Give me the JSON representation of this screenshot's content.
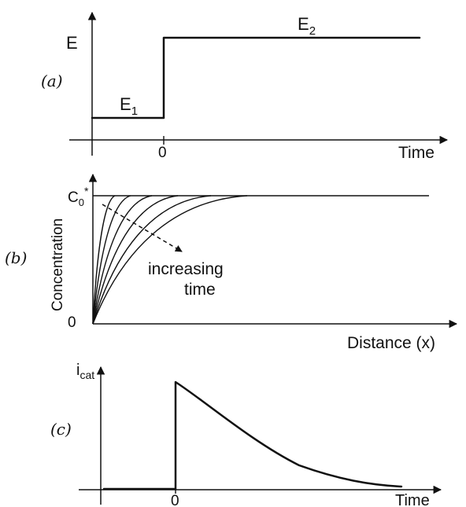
{
  "panel_a": {
    "label": "(a)",
    "y_label": "E",
    "x_label": "Time",
    "zero_tick": "0",
    "e1_label": "E",
    "e1_sub": "1",
    "e2_label": "E",
    "e2_sub": "2"
  },
  "panel_b": {
    "label": "(b)",
    "y_label": "Concentration",
    "x_label": "Distance (x)",
    "c0_label": "C",
    "c0_sub": "0",
    "c0_sup": "*",
    "zero_label": "0",
    "annotation_line1": "increasing",
    "annotation_line2": "time",
    "profile_count": 6
  },
  "panel_c": {
    "label": "(c)",
    "y_label": "i",
    "y_label_sub": "cat",
    "x_label": "Time",
    "zero_tick": "0"
  },
  "colors": {
    "ink": "#111111",
    "background": "#ffffff"
  }
}
